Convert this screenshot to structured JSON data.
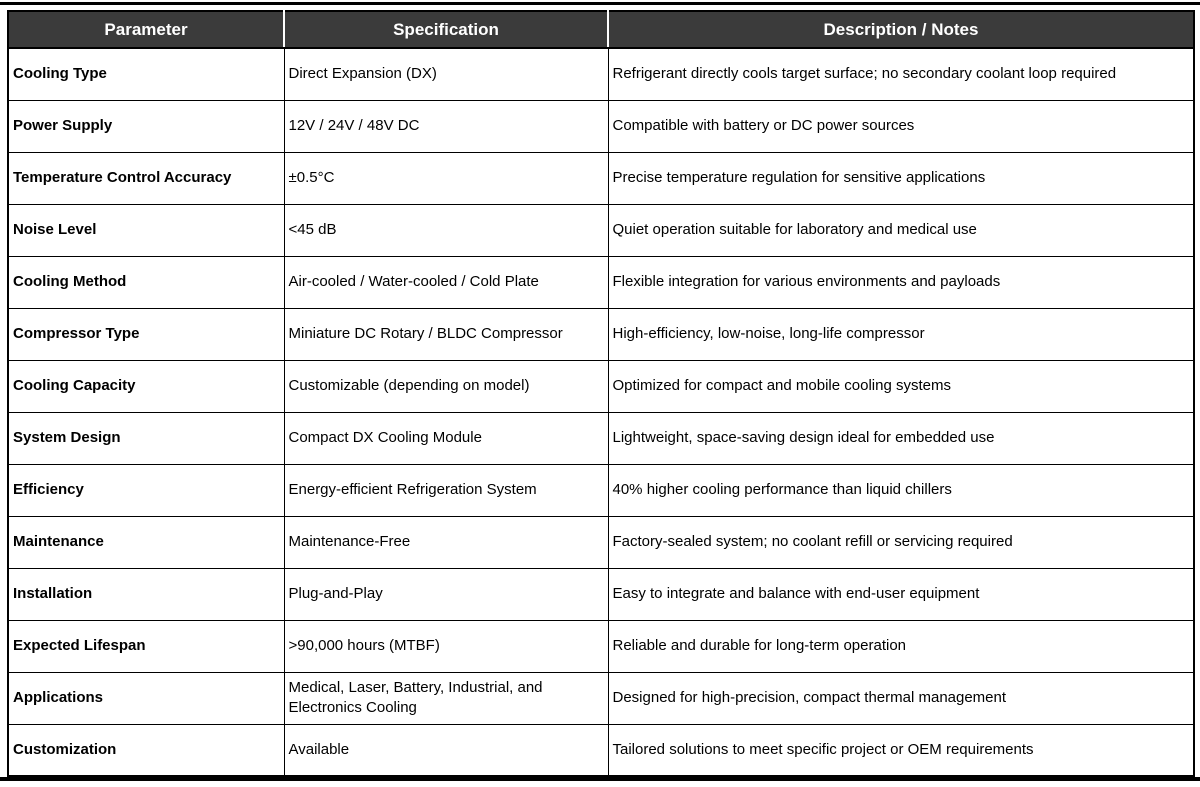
{
  "colors": {
    "header_bg": "#3b3b3b",
    "header_text": "#ffffff",
    "border": "#000000",
    "body_text": "#000000",
    "page_bg": "#ffffff"
  },
  "table": {
    "columns": [
      "Parameter",
      "Specification",
      "Description / Notes"
    ],
    "rows": [
      {
        "parameter": "Cooling Type",
        "specification": "Direct Expansion (DX)",
        "notes": "Refrigerant directly cools target surface; no secondary coolant loop required"
      },
      {
        "parameter": "Power Supply",
        "specification": "12V / 24V / 48V DC",
        "notes": "Compatible with battery or DC power sources"
      },
      {
        "parameter": "Temperature Control Accuracy",
        "specification": "±0.5°C",
        "notes": "Precise temperature regulation for sensitive applications"
      },
      {
        "parameter": "Noise Level",
        "specification": "<45 dB",
        "notes": "Quiet operation suitable for laboratory and medical use"
      },
      {
        "parameter": "Cooling Method",
        "specification": "Air-cooled / Water-cooled / Cold Plate",
        "notes": "Flexible integration for various environments and payloads"
      },
      {
        "parameter": "Compressor Type",
        "specification": "Miniature DC Rotary / BLDC Compressor",
        "notes": "High-efficiency, low-noise, long-life compressor"
      },
      {
        "parameter": "Cooling Capacity",
        "specification": "Customizable (depending on model)",
        "notes": "Optimized for compact and mobile cooling systems"
      },
      {
        "parameter": "System Design",
        "specification": "Compact DX Cooling Module",
        "notes": "Lightweight, space-saving design ideal for embedded use"
      },
      {
        "parameter": "Efficiency",
        "specification": "Energy-efficient Refrigeration System",
        "notes": "40% higher cooling performance than liquid chillers"
      },
      {
        "parameter": "Maintenance",
        "specification": "Maintenance-Free",
        "notes": "Factory-sealed system; no coolant refill or servicing required"
      },
      {
        "parameter": "Installation",
        "specification": "Plug-and-Play",
        "notes": "Easy to integrate and balance with end-user equipment"
      },
      {
        "parameter": "Expected Lifespan",
        "specification": ">90,000 hours (MTBF)",
        "notes": "Reliable and durable for long-term operation"
      },
      {
        "parameter": "Applications",
        "specification": "Medical, Laser, Battery, Industrial, and Electronics Cooling",
        "notes": "Designed for high-precision, compact thermal management"
      },
      {
        "parameter": "Customization",
        "specification": "Available",
        "notes": "Tailored solutions to meet specific project or OEM requirements"
      }
    ]
  }
}
